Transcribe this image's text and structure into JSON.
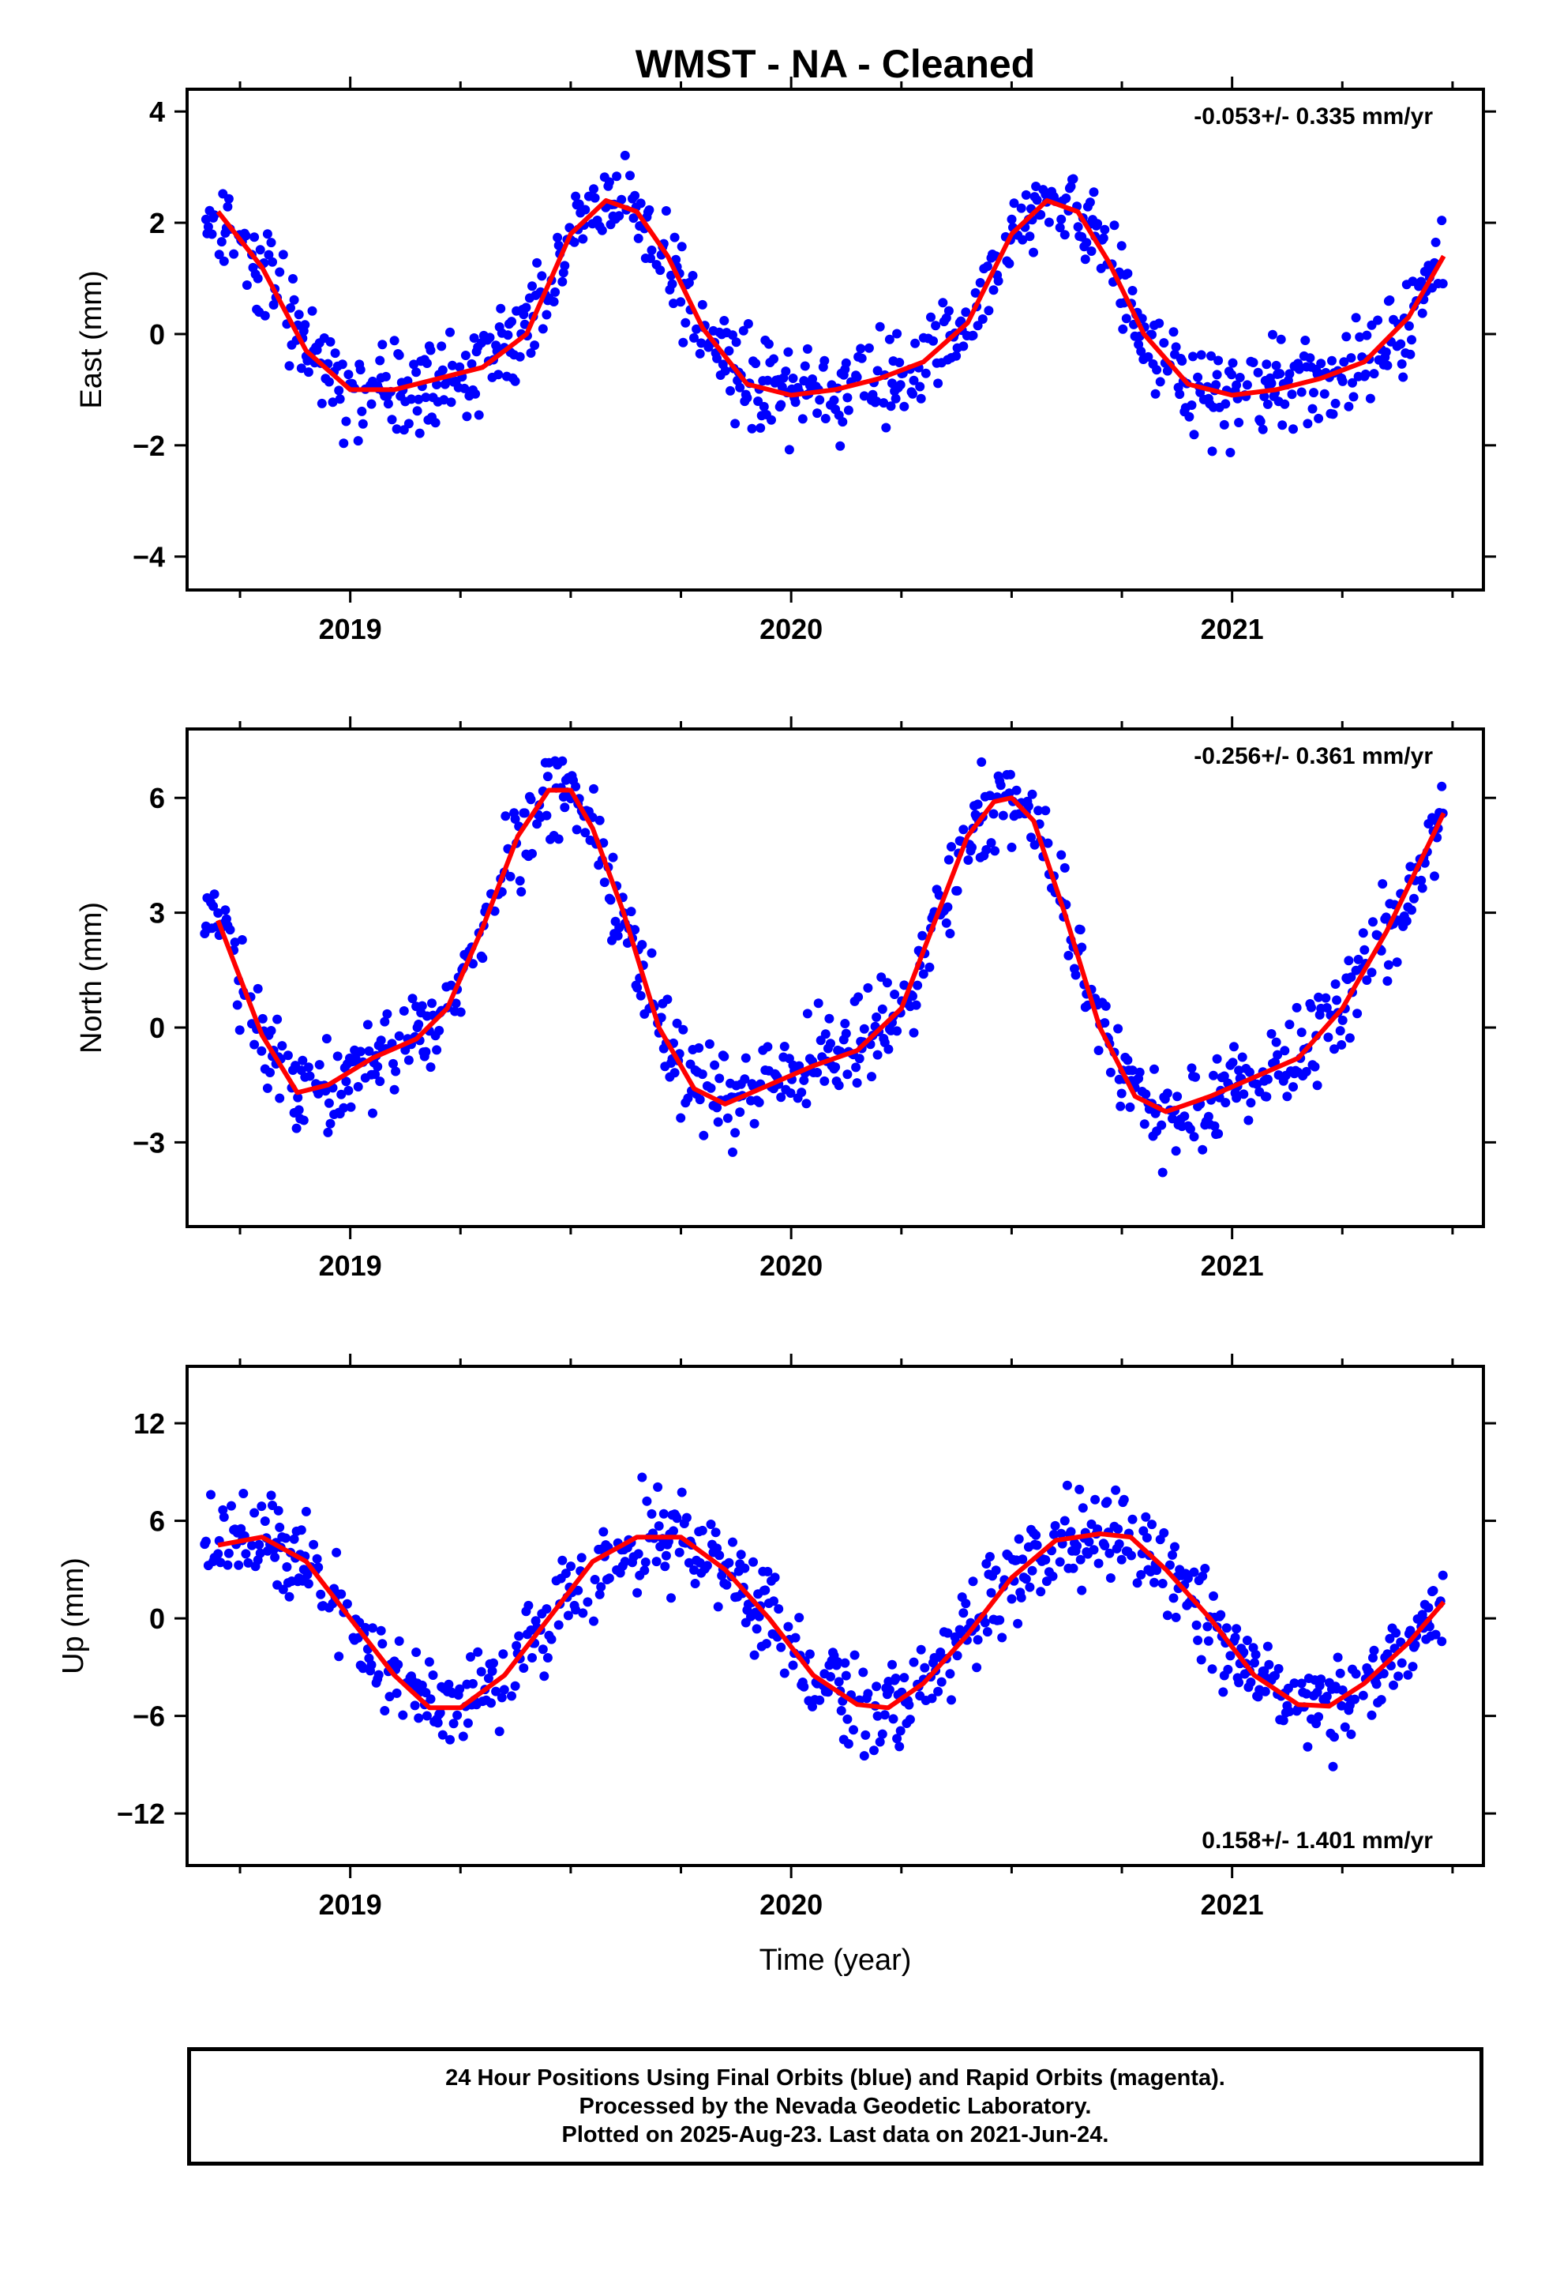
{
  "title": "WMST  - NA - Cleaned",
  "caption": [
    "24 Hour Positions Using Final Orbits (blue) and Rapid Orbits (magenta).",
    "Processed by the Nevada Geodetic Laboratory.",
    "Plotted on 2025-Aug-23. Last data on 2021-Jun-24."
  ],
  "colors": {
    "points_final": "#0000ff",
    "points_rapid": "#ff00ff",
    "fit": "#ff0000",
    "frame": "#000000"
  },
  "chart_data": [
    {
      "type": "scatter",
      "component": "East",
      "ylabel": "East (mm)",
      "xlabel": "",
      "xlim": [
        2018.63,
        2021.57
      ],
      "ylim": [
        -4.6,
        4.4
      ],
      "xticks": [
        2019,
        2020,
        2021
      ],
      "yticks": [
        4,
        2,
        0,
        -2,
        -4
      ],
      "ytick_labels": [
        "4",
        "2",
        "0",
        "−2",
        "−4"
      ],
      "rate_text": "-0.053+/- 0.335 mm/yr",
      "rate_position": "top-right",
      "fit": {
        "x": [
          2018.7,
          2018.8,
          2018.9,
          2019.0,
          2019.1,
          2019.2,
          2019.3,
          2019.4,
          2019.5,
          2019.58,
          2019.65,
          2019.72,
          2019.8,
          2019.9,
          2020.0,
          2020.1,
          2020.2,
          2020.3,
          2020.4,
          2020.5,
          2020.58,
          2020.65,
          2020.72,
          2020.8,
          2020.9,
          2021.0,
          2021.1,
          2021.2,
          2021.3,
          2021.4,
          2021.48
        ],
        "y": [
          2.2,
          1.2,
          -0.3,
          -1.0,
          -1.0,
          -0.8,
          -0.6,
          0.0,
          1.8,
          2.4,
          2.2,
          1.4,
          0.1,
          -0.9,
          -1.1,
          -1.0,
          -0.8,
          -0.5,
          0.2,
          1.8,
          2.4,
          2.2,
          1.3,
          0.0,
          -0.9,
          -1.1,
          -1.0,
          -0.8,
          -0.5,
          0.3,
          1.4
        ]
      }
    },
    {
      "type": "scatter",
      "component": "North",
      "ylabel": "North (mm)",
      "xlabel": "",
      "xlim": [
        2018.63,
        2021.57
      ],
      "ylim": [
        -5.2,
        7.8
      ],
      "xticks": [
        2019,
        2020,
        2021
      ],
      "yticks": [
        6,
        3,
        0,
        -3
      ],
      "ytick_labels": [
        "6",
        "3",
        "0",
        "−3"
      ],
      "rate_text": "-0.256+/- 0.361 mm/yr",
      "rate_position": "top-right",
      "fit": {
        "x": [
          2018.7,
          2018.8,
          2018.88,
          2018.95,
          2019.05,
          2019.15,
          2019.22,
          2019.3,
          2019.38,
          2019.45,
          2019.5,
          2019.55,
          2019.62,
          2019.7,
          2019.78,
          2019.85,
          2019.95,
          2020.05,
          2020.15,
          2020.25,
          2020.32,
          2020.4,
          2020.46,
          2020.5,
          2020.55,
          2020.62,
          2020.7,
          2020.78,
          2020.85,
          2020.95,
          2021.05,
          2021.15,
          2021.25,
          2021.35,
          2021.48
        ],
        "y": [
          2.8,
          -0.2,
          -1.7,
          -1.5,
          -0.8,
          -0.3,
          0.5,
          2.6,
          5.0,
          6.2,
          6.2,
          5.2,
          3.0,
          0.0,
          -1.6,
          -2.0,
          -1.5,
          -1.0,
          -0.6,
          0.5,
          2.6,
          5.0,
          5.9,
          6.0,
          5.4,
          3.0,
          0.0,
          -1.8,
          -2.2,
          -1.8,
          -1.3,
          -0.8,
          0.5,
          2.5,
          5.6
        ]
      }
    },
    {
      "type": "scatter",
      "component": "Up",
      "ylabel": "Up (mm)",
      "xlabel": "Time (year)",
      "xlim": [
        2018.63,
        2021.57
      ],
      "ylim": [
        -15.2,
        15.5
      ],
      "xticks": [
        2019,
        2020,
        2021
      ],
      "yticks": [
        12,
        6,
        0,
        -6,
        -12
      ],
      "ytick_labels": [
        "12",
        "6",
        "0",
        "−6",
        "−12"
      ],
      "rate_text": "0.158+/- 1.401 mm/yr",
      "rate_position": "bottom-right",
      "fit": {
        "x": [
          2018.7,
          2018.8,
          2018.9,
          2019.0,
          2019.1,
          2019.18,
          2019.25,
          2019.35,
          2019.45,
          2019.55,
          2019.65,
          2019.75,
          2019.85,
          2019.95,
          2020.05,
          2020.15,
          2020.22,
          2020.3,
          2020.4,
          2020.5,
          2020.6,
          2020.7,
          2020.77,
          2020.85,
          2020.95,
          2021.05,
          2021.15,
          2021.22,
          2021.3,
          2021.4,
          2021.48
        ],
        "y": [
          4.5,
          5.0,
          3.5,
          0.0,
          -3.5,
          -5.5,
          -5.5,
          -3.5,
          0.0,
          3.5,
          5.0,
          5.0,
          3.0,
          0.0,
          -3.5,
          -5.3,
          -5.5,
          -4.0,
          -1.0,
          2.5,
          4.8,
          5.2,
          5.0,
          3.0,
          0.0,
          -3.5,
          -5.3,
          -5.4,
          -4.0,
          -1.5,
          1.0
        ]
      }
    }
  ]
}
